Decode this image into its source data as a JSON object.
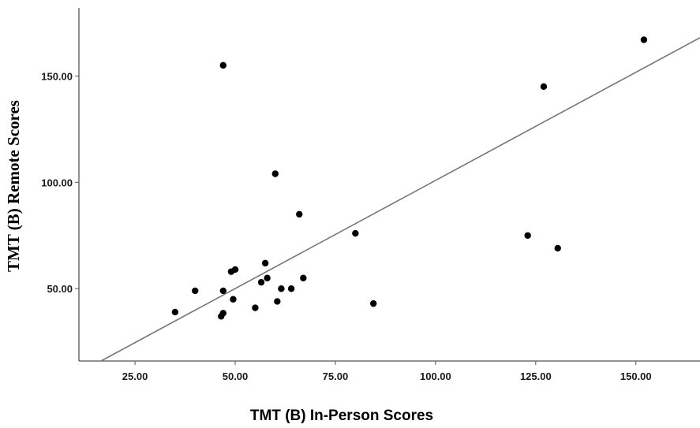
{
  "chart_data": {
    "type": "scatter",
    "xlabel": "TMT (B) In-Person Scores",
    "ylabel": "TMT (B) Remote Scores",
    "title": "",
    "xlim": [
      11,
      166
    ],
    "ylim": [
      16,
      182
    ],
    "x_ticks": [
      25,
      50,
      75,
      100,
      125,
      150
    ],
    "x_tick_labels": [
      "25.00",
      "50.00",
      "75.00",
      "100.00",
      "125.00",
      "150.00"
    ],
    "y_ticks": [
      50,
      100,
      150
    ],
    "y_tick_labels": [
      "50.00",
      "100.00",
      "150.00"
    ],
    "grid": false,
    "points": [
      {
        "x": 152,
        "y": 167
      },
      {
        "x": 127,
        "y": 145
      },
      {
        "x": 47,
        "y": 155
      },
      {
        "x": 60,
        "y": 104
      },
      {
        "x": 66,
        "y": 85
      },
      {
        "x": 80,
        "y": 76
      },
      {
        "x": 123,
        "y": 75
      },
      {
        "x": 130.5,
        "y": 69
      },
      {
        "x": 57.5,
        "y": 62
      },
      {
        "x": 50,
        "y": 59
      },
      {
        "x": 49,
        "y": 58
      },
      {
        "x": 58,
        "y": 55
      },
      {
        "x": 67,
        "y": 55
      },
      {
        "x": 56.5,
        "y": 53
      },
      {
        "x": 61.5,
        "y": 50
      },
      {
        "x": 64,
        "y": 50
      },
      {
        "x": 47,
        "y": 49
      },
      {
        "x": 40,
        "y": 49
      },
      {
        "x": 49.5,
        "y": 45
      },
      {
        "x": 60.5,
        "y": 44
      },
      {
        "x": 84.5,
        "y": 43
      },
      {
        "x": 55,
        "y": 41
      },
      {
        "x": 35,
        "y": 39
      },
      {
        "x": 47,
        "y": 38.5
      },
      {
        "x": 46.5,
        "y": 37
      }
    ],
    "fit_line": {
      "x": [
        16.5,
        166
      ],
      "y": [
        16,
        168
      ]
    }
  }
}
